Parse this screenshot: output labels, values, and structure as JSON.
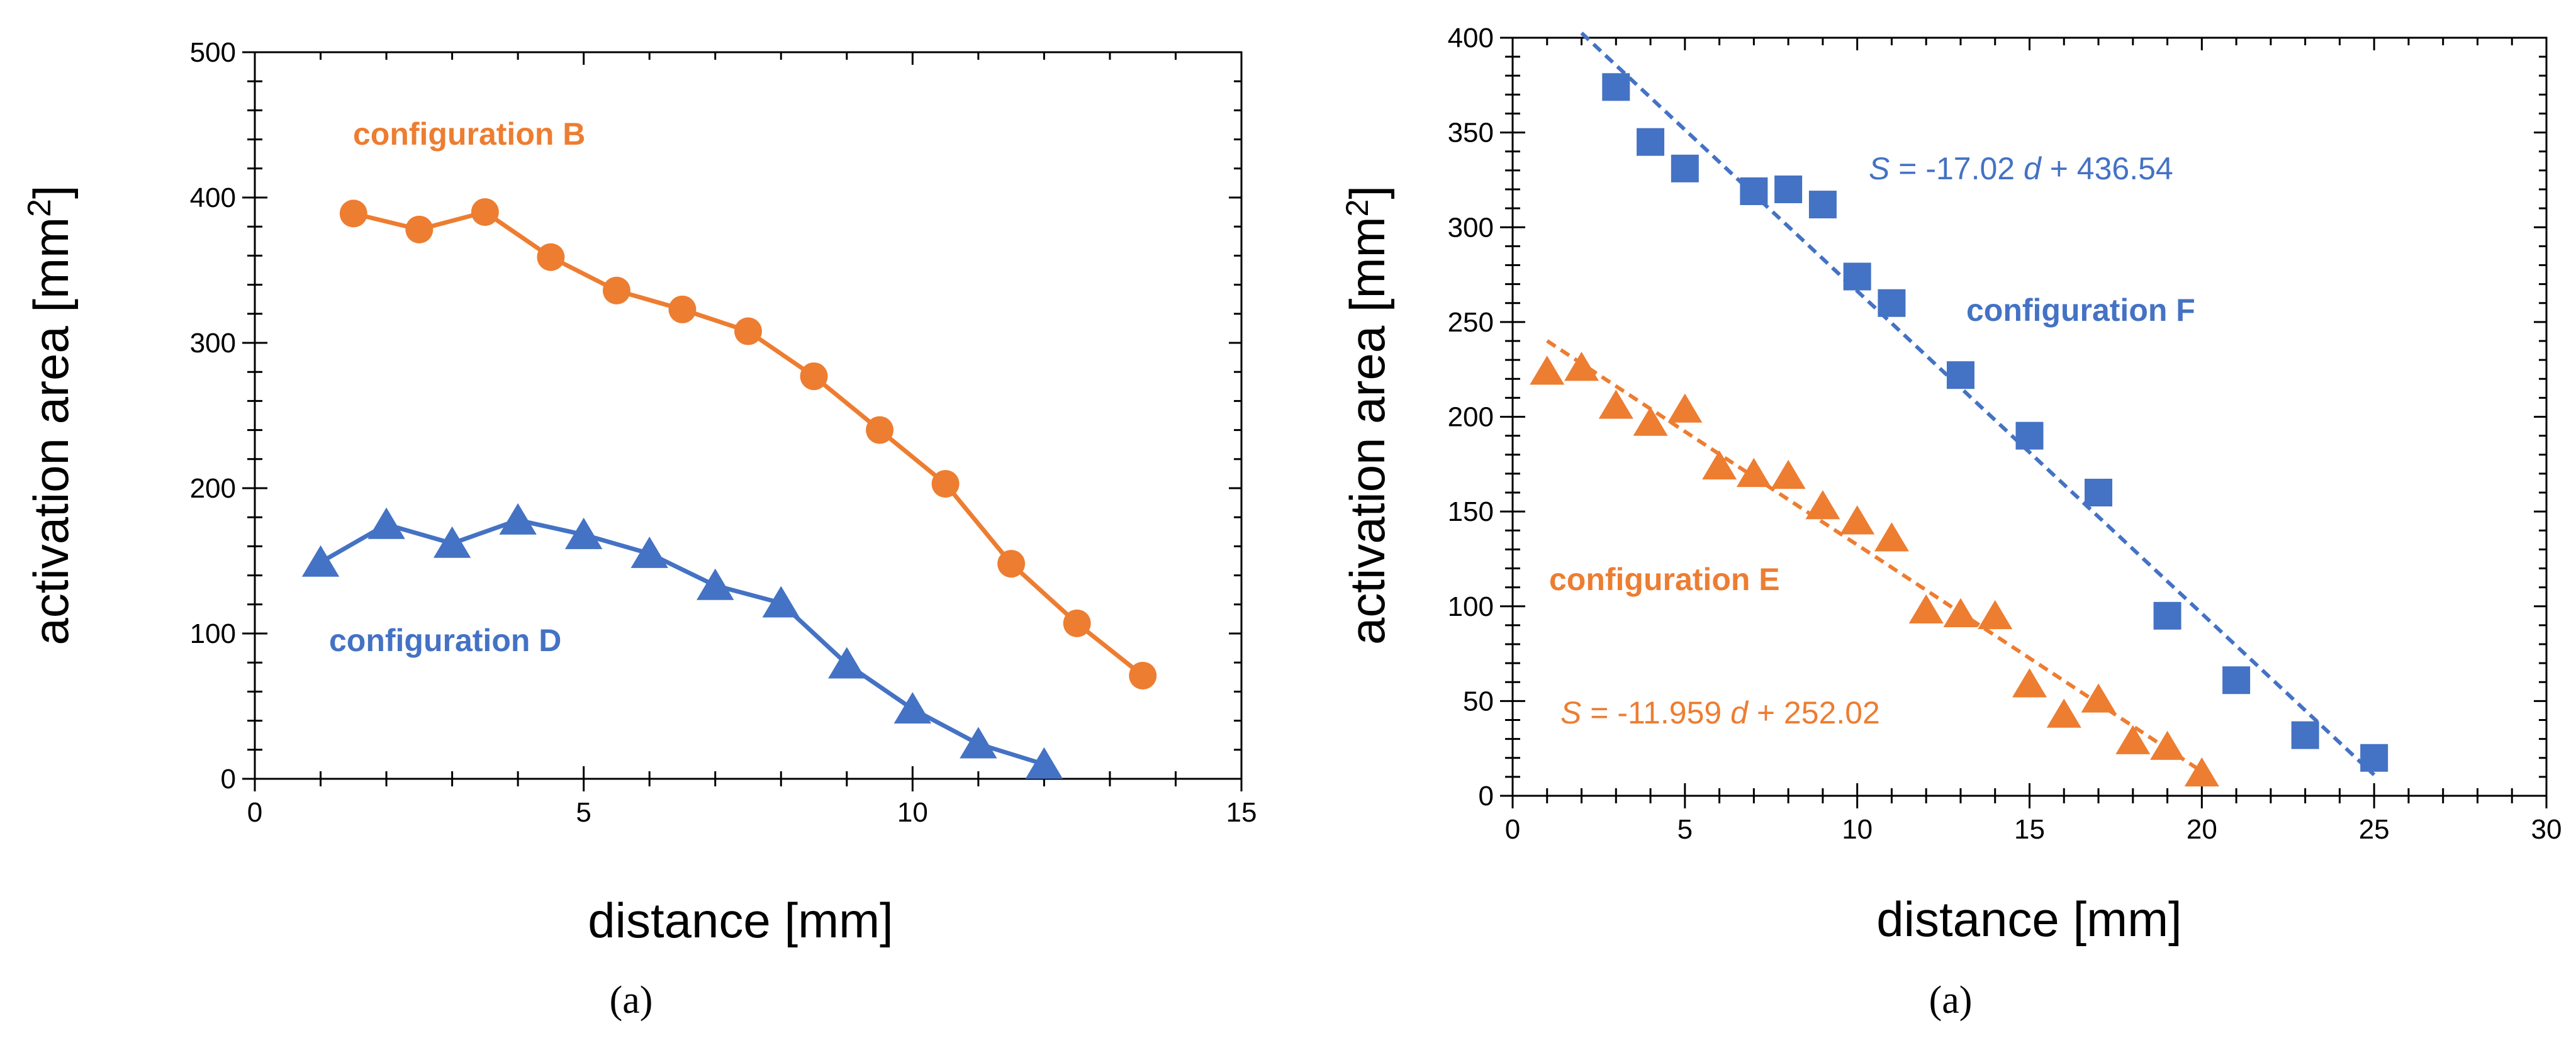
{
  "chart_data": [
    {
      "type": "line",
      "caption": "(a)",
      "xlabel": "distance [mm]",
      "ylabel_main": "activation area [mm",
      "ylabel_sup": "2",
      "ylabel_close": "]",
      "xlim": [
        0,
        15
      ],
      "ylim": [
        0,
        500
      ],
      "xticks": [
        0,
        5,
        10,
        15
      ],
      "yticks": [
        0,
        100,
        200,
        300,
        400,
        500
      ],
      "series": [
        {
          "name": "configuration B",
          "color": "#ED7D31",
          "marker": "circle",
          "x": [
            1.5,
            2.5,
            3.5,
            4.5,
            5.5,
            6.5,
            7.5,
            8.5,
            9.5,
            10.5,
            11.5,
            12.5,
            13.5
          ],
          "values": [
            389,
            378,
            390,
            359,
            336,
            323,
            308,
            277,
            240,
            203,
            148,
            107,
            71
          ]
        },
        {
          "name": "configuration D",
          "color": "#4472C4",
          "marker": "triangle",
          "x": [
            1,
            2,
            3,
            4,
            5,
            6,
            7,
            8,
            9,
            10,
            11,
            12
          ],
          "values": [
            149,
            175,
            162,
            178,
            168,
            155,
            133,
            121,
            79,
            48,
            24,
            10
          ]
        }
      ]
    },
    {
      "type": "scatter",
      "caption": "(a)",
      "xlabel": "distance [mm]",
      "ylabel_main": "activation area [mm",
      "ylabel_sup": "2",
      "ylabel_close": "]",
      "xlim": [
        0,
        30
      ],
      "ylim": [
        0,
        400
      ],
      "xticks": [
        0,
        5,
        10,
        15,
        20,
        25,
        30
      ],
      "yticks": [
        0,
        50,
        100,
        150,
        200,
        250,
        300,
        350,
        400
      ],
      "series": [
        {
          "name": "configuration F",
          "color": "#4472C4",
          "marker": "square",
          "x": [
            3,
            4,
            5,
            7,
            8,
            9,
            10,
            11,
            13,
            15,
            17,
            19,
            21,
            23,
            25
          ],
          "values": [
            374,
            345,
            331,
            319,
            320,
            312,
            274,
            260,
            222,
            190,
            160,
            95,
            61,
            32,
            20
          ],
          "fit": {
            "slope": -17.02,
            "intercept": 436.54,
            "x_range": [
              2,
              25
            ]
          },
          "equation": {
            "var_s": "S",
            "mid": " = -17.02 ",
            "var_d": "d",
            "tail": " + 436.54"
          }
        },
        {
          "name": "configuration E",
          "color": "#ED7D31",
          "marker": "triangle",
          "x": [
            1,
            2,
            3,
            4,
            5,
            6,
            7,
            8,
            9,
            10,
            11,
            12,
            13,
            14,
            15,
            16,
            17,
            18,
            19,
            20
          ],
          "values": [
            224,
            226,
            206,
            197,
            204,
            174,
            170,
            169,
            153,
            145,
            136,
            98,
            96,
            95,
            59,
            43,
            51,
            29,
            26,
            12
          ],
          "fit": {
            "slope": -11.959,
            "intercept": 252.02,
            "x_range": [
              1,
              20
            ]
          },
          "equation": {
            "var_s": "S",
            "mid": " = -11.959 ",
            "var_d": "d",
            "tail": " + 252.02"
          }
        }
      ]
    }
  ]
}
